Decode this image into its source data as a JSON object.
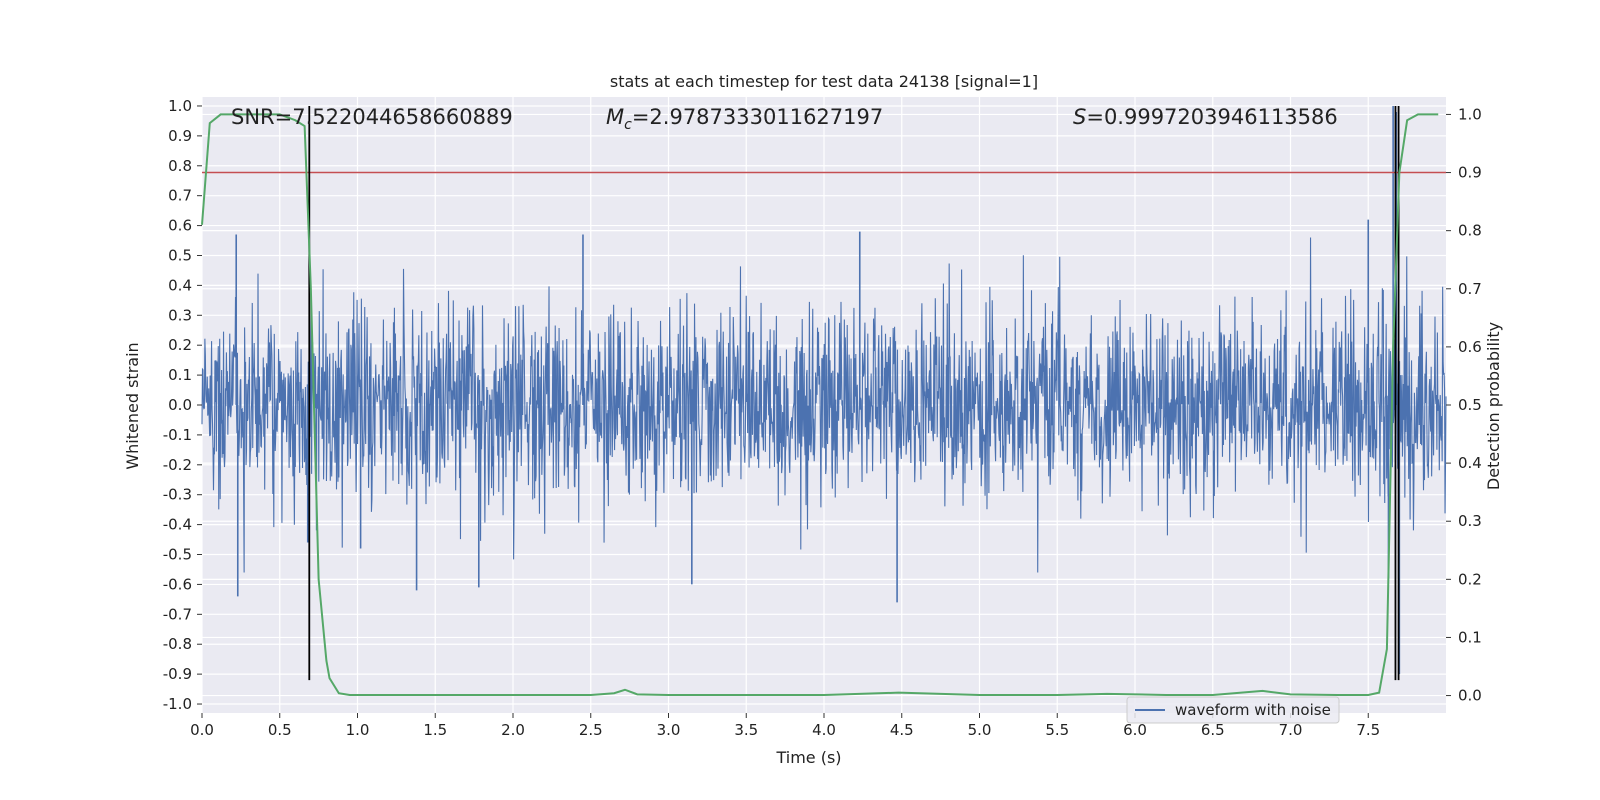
{
  "chart_data": {
    "type": "line",
    "title": "stats at each timestep for test data 24138 [signal=1]",
    "xlabel": "Time (s)",
    "ylabel": "Whitened strain",
    "y2label": "Detection probability",
    "xlim": [
      0.0,
      8.0
    ],
    "ylim": [
      -1.03,
      1.03
    ],
    "y2lim": [
      -0.03,
      1.03
    ],
    "x_ticks": [
      0.0,
      0.5,
      1.0,
      1.5,
      2.0,
      2.5,
      3.0,
      3.5,
      4.0,
      4.5,
      5.0,
      5.5,
      6.0,
      6.5,
      7.0,
      7.5
    ],
    "y_ticks": [
      -1.0,
      -0.9,
      -0.8,
      -0.7,
      -0.6,
      -0.5,
      -0.4,
      -0.3,
      -0.2,
      -0.1,
      0.0,
      0.1,
      0.2,
      0.3,
      0.4,
      0.5,
      0.6,
      0.7,
      0.8,
      0.9,
      1.0
    ],
    "y2_ticks": [
      0.0,
      0.1,
      0.2,
      0.3,
      0.4,
      0.5,
      0.6,
      0.7,
      0.8,
      0.9,
      1.0
    ],
    "annotations": {
      "snr_label": "SNR=7.522044658660889",
      "mc_symbol": "M",
      "mc_sub": "c",
      "mc_value": "=2.9787333011627197",
      "s_symbol": "S",
      "s_value": "=0.9997203946113586"
    },
    "legend": {
      "label": "waveform with noise",
      "position": "lower-right"
    },
    "series": [
      {
        "name": "waveform with noise",
        "axis": "left",
        "style": "noise",
        "color": "#4c72b0",
        "x_range": [
          0.0,
          8.0
        ],
        "mean": 0.0,
        "std": 0.16,
        "peaks": [
          {
            "x": 0.22,
            "y": 0.57
          },
          {
            "x": 0.23,
            "y": -0.64
          },
          {
            "x": 0.68,
            "y": -0.46
          },
          {
            "x": 1.02,
            "y": -0.48
          },
          {
            "x": 1.38,
            "y": -0.62
          },
          {
            "x": 1.78,
            "y": -0.61
          },
          {
            "x": 2.45,
            "y": 0.57
          },
          {
            "x": 3.15,
            "y": -0.6
          },
          {
            "x": 4.23,
            "y": 0.58
          },
          {
            "x": 4.47,
            "y": -0.66
          },
          {
            "x": 7.5,
            "y": 0.62
          },
          {
            "x": 7.63,
            "y": -0.58
          },
          {
            "x": 7.66,
            "y": 1.0
          },
          {
            "x": 7.68,
            "y": 0.98
          },
          {
            "x": 7.7,
            "y": -0.9
          }
        ]
      },
      {
        "name": "detection probability",
        "axis": "right",
        "color": "#55a868",
        "x": [
          0.0,
          0.05,
          0.12,
          0.2,
          0.3,
          0.4,
          0.5,
          0.6,
          0.66,
          0.7,
          0.75,
          0.8,
          0.82,
          0.88,
          0.95,
          1.0,
          1.5,
          2.0,
          2.5,
          2.65,
          2.72,
          2.8,
          3.0,
          3.5,
          4.0,
          4.48,
          5.0,
          5.5,
          5.82,
          6.2,
          6.5,
          6.82,
          7.0,
          7.3,
          7.5,
          7.57,
          7.62,
          7.66,
          7.7,
          7.75,
          7.82,
          7.9,
          7.95
        ],
        "y": [
          0.81,
          0.985,
          1.0,
          1.0,
          1.0,
          1.0,
          1.0,
          0.99,
          0.98,
          0.7,
          0.2,
          0.06,
          0.03,
          0.004,
          0.001,
          0.001,
          0.001,
          0.001,
          0.001,
          0.004,
          0.01,
          0.002,
          0.001,
          0.001,
          0.001,
          0.005,
          0.001,
          0.001,
          0.003,
          0.001,
          0.001,
          0.008,
          0.002,
          0.001,
          0.001,
          0.005,
          0.08,
          0.6,
          0.9,
          0.99,
          1.0,
          1.0,
          1.0
        ]
      }
    ],
    "threshold_line": {
      "axis": "right",
      "y": 0.9,
      "color": "#c44e52"
    },
    "vertical_lines": [
      {
        "x": 0.69,
        "y_top": 1.0,
        "y_bottom": -0.92
      },
      {
        "x": 7.675,
        "y_top": 1.0,
        "y_bottom": -0.92
      },
      {
        "x": 7.695,
        "y_top": 1.0,
        "y_bottom": -0.92
      }
    ],
    "colors": {
      "plot_bg": "#eaeaf2",
      "grid": "#ffffff",
      "vline": "#000000"
    }
  }
}
